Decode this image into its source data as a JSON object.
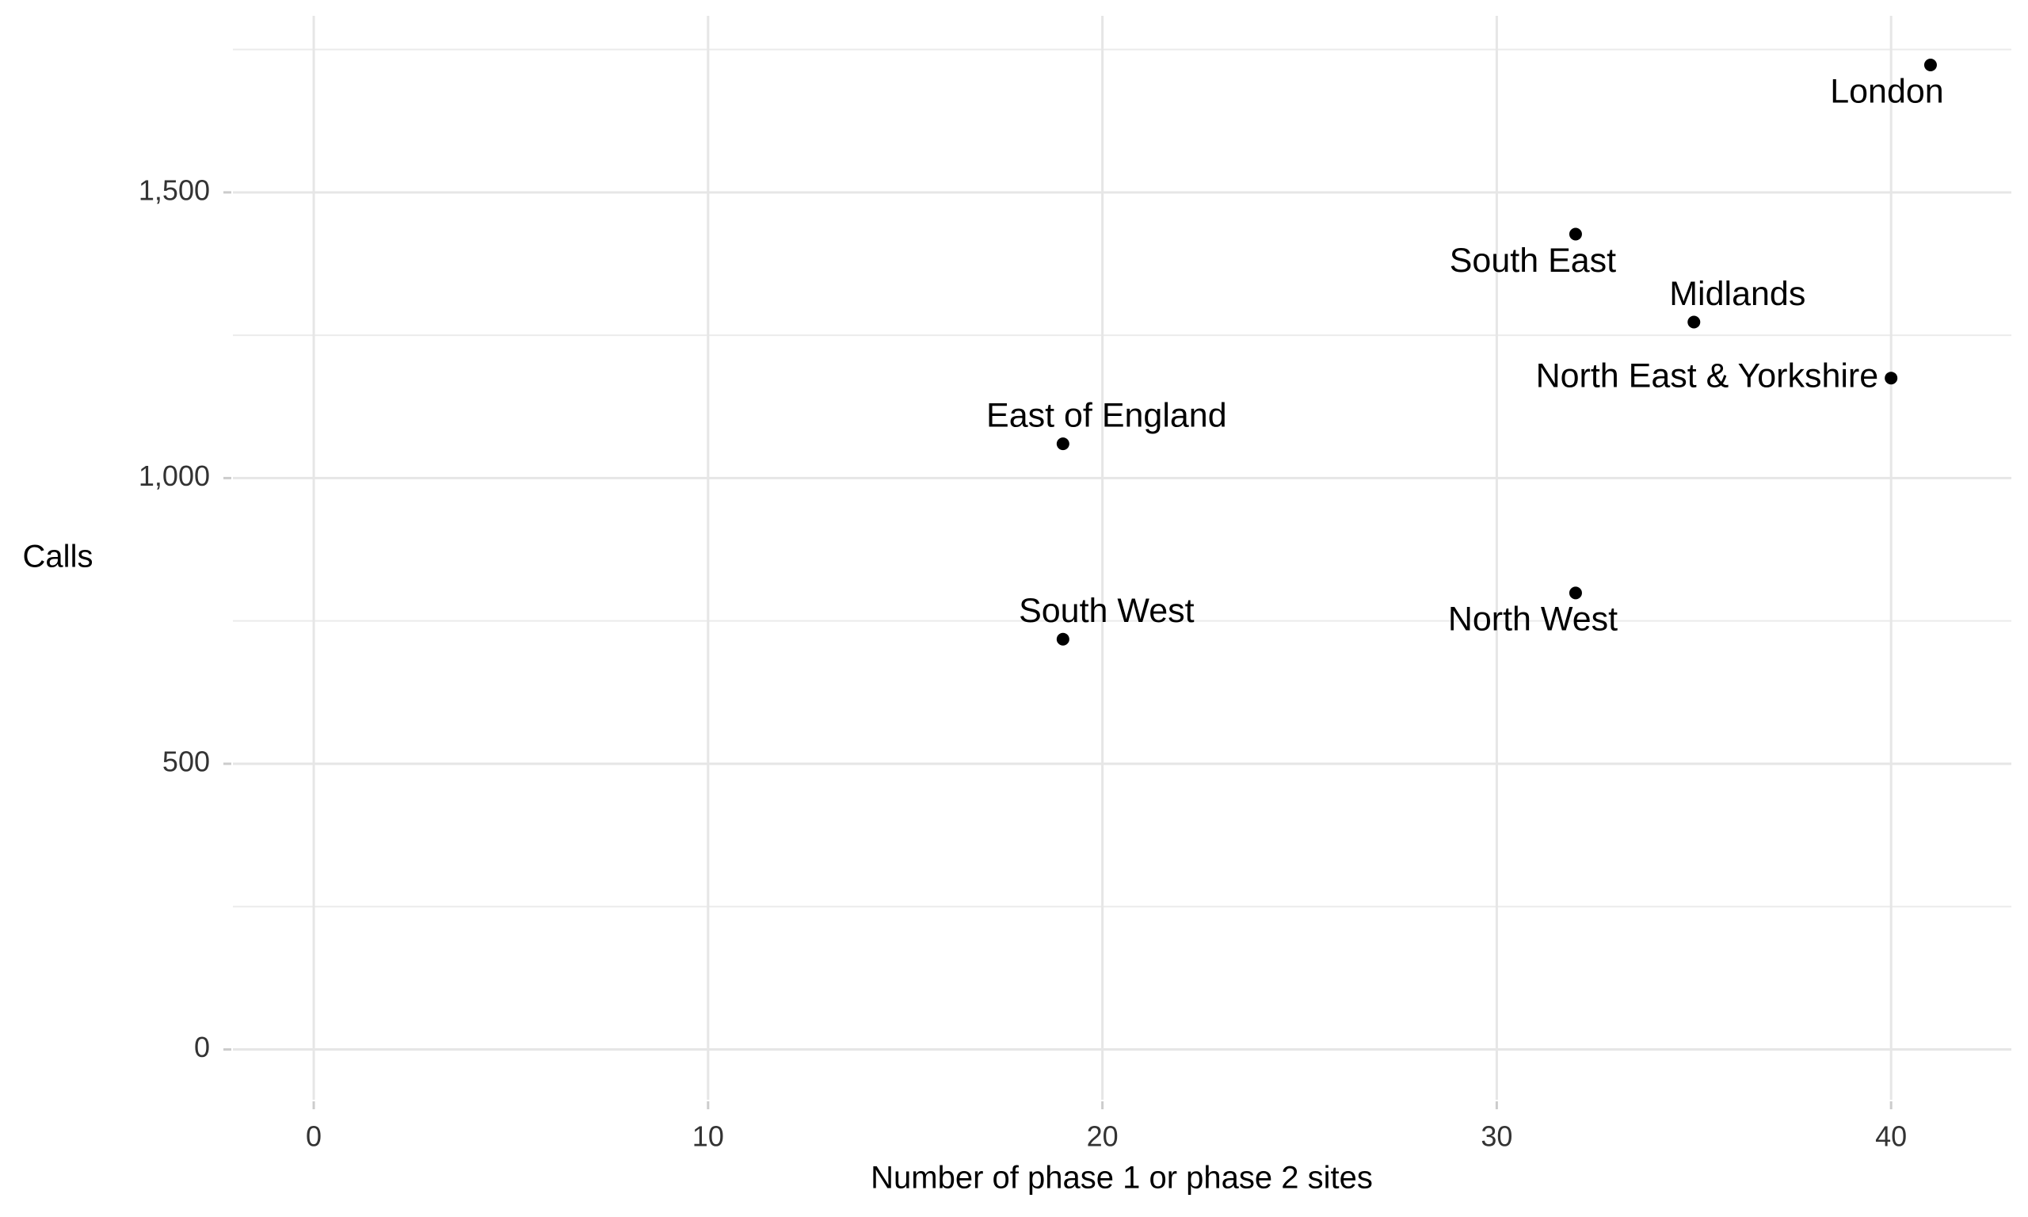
{
  "chart_data": {
    "type": "scatter",
    "x_label": "Number of phase 1 or phase 2 sites",
    "y_label": "Calls",
    "series": [
      {
        "name": null,
        "color": "#000000",
        "labels": [
          "London",
          "South East",
          "Midlands",
          "North East & Yorkshire",
          "East of England",
          "South West",
          "North West"
        ],
        "x": [
          41,
          32,
          35,
          40,
          19,
          19,
          32
        ],
        "values": [
          1723,
          1427,
          1273,
          1175,
          1060,
          718,
          799
        ]
      }
    ],
    "xlim": [
      -2.05,
      43.05
    ],
    "xticks": [
      0,
      10,
      20,
      30,
      40
    ],
    "ylim": [
      -88,
      1809
    ],
    "yticks": [
      0,
      500,
      {
        "value": 1000,
        "label": "1,000"
      },
      {
        "value": 1500,
        "label": "1,500"
      }
    ],
    "y_minor_grid": [
      250,
      750,
      1250,
      1750
    ],
    "grid": true
  }
}
